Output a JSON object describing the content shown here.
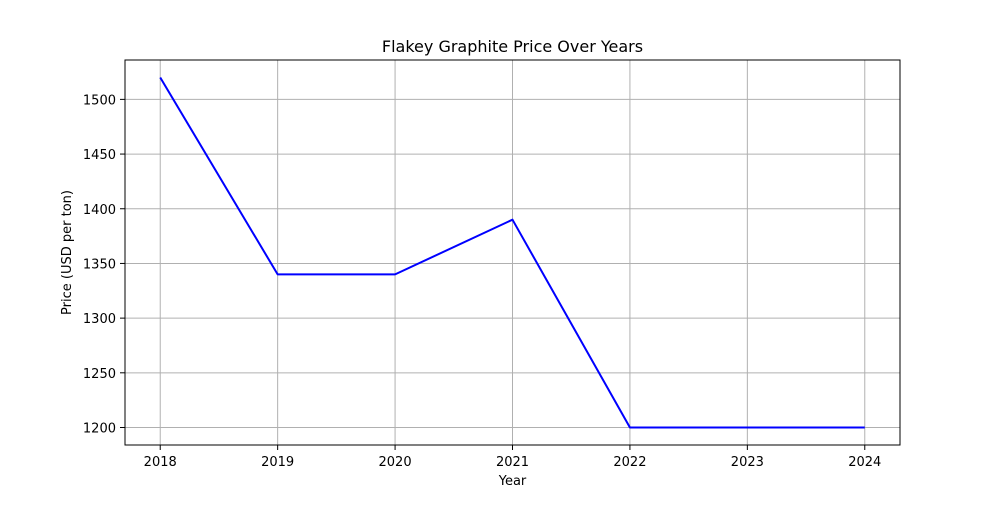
{
  "chart_data": {
    "type": "line",
    "title": "Flakey Graphite Price Over Years",
    "xlabel": "Year",
    "ylabel": "Price (USD per ton)",
    "x": [
      2018,
      2019,
      2020,
      2021,
      2022,
      2023,
      2024
    ],
    "series": [
      {
        "values": [
          1520,
          1340,
          1340,
          1390,
          1200,
          1200,
          1200
        ]
      }
    ],
    "xlim": [
      2017.7,
      2024.3
    ],
    "ylim": [
      1184,
      1536
    ],
    "xticks": [
      2018,
      2019,
      2020,
      2021,
      2022,
      2023,
      2024
    ],
    "yticks": [
      1200,
      1250,
      1300,
      1350,
      1400,
      1450,
      1500
    ],
    "grid": true,
    "line_color": "#0000ff",
    "grid_color": "#b0b0b0"
  }
}
